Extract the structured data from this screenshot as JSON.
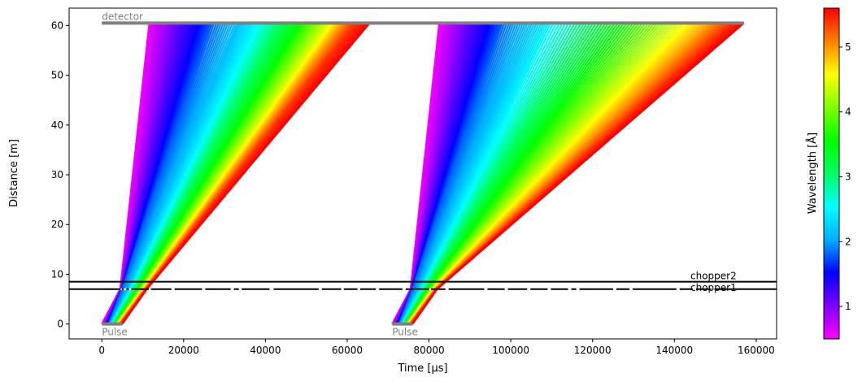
{
  "chart_data": {
    "type": "line",
    "title": "",
    "xlabel": "Time [µs]",
    "ylabel": "Distance [m]",
    "xlim": [
      -8000,
      165000
    ],
    "ylim": [
      -3,
      63.5
    ],
    "xticks": [
      0,
      20000,
      40000,
      60000,
      80000,
      100000,
      120000,
      140000,
      160000
    ],
    "yticks": [
      0,
      10,
      20,
      30,
      40,
      50,
      60
    ],
    "grid": false,
    "colorbar": {
      "label": "Wavelength [Å]",
      "range": [
        0.5,
        5.6
      ],
      "ticks": [
        1,
        2,
        3,
        4,
        5
      ],
      "colormap": "gist_rainbow_r",
      "colors": [
        "#ff00ff",
        "#7f00ff",
        "#0000ff",
        "#00b0ff",
        "#00ffff",
        "#00ff60",
        "#00ff00",
        "#80ff00",
        "#ffff00",
        "#ff8000",
        "#ff0000"
      ]
    },
    "detector": {
      "label": "detector",
      "distance": 60.5,
      "t_start": 0,
      "t_end": 157000,
      "color": "#808080"
    },
    "pulses": [
      {
        "label": "Pulse",
        "t_start": 0,
        "t_end": 5000,
        "distance": 0,
        "color": "#808080"
      },
      {
        "label": "Pulse",
        "t_start": 71000,
        "t_end": 76000,
        "distance": 0,
        "color": "#808080"
      }
    ],
    "choppers": [
      {
        "label": "chopper1",
        "distance": 7.0,
        "color": "#000000"
      },
      {
        "label": "chopper2",
        "distance": 8.5,
        "color": "#000000"
      }
    ],
    "chopper_openings": [
      [
        4600,
        4900
      ],
      [
        5300,
        6000
      ],
      [
        6600,
        7200
      ],
      [
        11500,
        12000
      ],
      [
        17000,
        17800
      ],
      [
        24500,
        25300
      ],
      [
        31500,
        32300
      ],
      [
        33500,
        34200
      ],
      [
        41000,
        42000
      ],
      [
        53000,
        53800
      ],
      [
        58500,
        59200
      ],
      [
        62500,
        63200
      ],
      [
        67000,
        67800
      ],
      [
        73500,
        74300
      ],
      [
        80000,
        80500
      ],
      [
        84000,
        84800
      ],
      [
        93500,
        94300
      ],
      [
        98500,
        99300
      ],
      [
        104000,
        104800
      ],
      [
        109000,
        109800
      ],
      [
        114000,
        114800
      ],
      [
        116000,
        116800
      ],
      [
        125000,
        125800
      ],
      [
        129000,
        129800
      ],
      [
        140500,
        141300
      ],
      [
        144500,
        145300
      ],
      [
        149000,
        149800
      ]
    ],
    "rays": [
      {
        "lambda": 0.55,
        "t_chopper": 4500,
        "t_detector": 11600
      },
      {
        "lambda": 0.7,
        "t_chopper": 4700,
        "t_detector": 13500
      },
      {
        "lambda": 0.9,
        "t_chopper": 4800,
        "t_detector": 16000
      },
      {
        "lambda": 1.2,
        "t_chopper": 4900,
        "t_detector": 19500
      },
      {
        "lambda": 1.5,
        "t_chopper": 4950,
        "t_detector": 23500
      },
      {
        "lambda": 1.8,
        "t_chopper": 5000,
        "t_detector": 27000
      },
      {
        "lambda": 2.1,
        "t_chopper": 6400,
        "t_detector": 33000
      },
      {
        "lambda": 2.5,
        "t_chopper": 7200,
        "t_detector": 38000
      },
      {
        "lambda": 3.0,
        "t_chopper": 8000,
        "t_detector": 43000
      },
      {
        "lambda": 3.5,
        "t_chopper": 8800,
        "t_detector": 48000
      },
      {
        "lambda": 4.0,
        "t_chopper": 9500,
        "t_detector": 52000
      },
      {
        "lambda": 4.5,
        "t_chopper": 10000,
        "t_detector": 56000
      },
      {
        "lambda": 5.0,
        "t_chopper": 10500,
        "t_detector": 59000
      },
      {
        "lambda": 5.4,
        "t_chopper": 10800,
        "t_detector": 62000
      },
      {
        "lambda": 5.6,
        "t_chopper": 11000,
        "t_detector": 65500
      },
      {
        "lambda": 0.55,
        "t_chopper": 75500,
        "t_detector": 82500
      },
      {
        "lambda": 0.7,
        "t_chopper": 75700,
        "t_detector": 84500
      },
      {
        "lambda": 0.9,
        "t_chopper": 75800,
        "t_detector": 87000
      },
      {
        "lambda": 1.2,
        "t_chopper": 75900,
        "t_detector": 90500
      },
      {
        "lambda": 1.5,
        "t_chopper": 75950,
        "t_detector": 94500
      },
      {
        "lambda": 1.8,
        "t_chopper": 76000,
        "t_detector": 98000
      },
      {
        "lambda": 2.1,
        "t_chopper": 77400,
        "t_detector": 104000
      },
      {
        "lambda": 2.5,
        "t_chopper": 78200,
        "t_detector": 110000
      },
      {
        "lambda": 3.0,
        "t_chopper": 79000,
        "t_detector": 118000
      },
      {
        "lambda": 3.5,
        "t_chopper": 79800,
        "t_detector": 126000
      },
      {
        "lambda": 4.0,
        "t_chopper": 80500,
        "t_detector": 134000
      },
      {
        "lambda": 4.5,
        "t_chopper": 81000,
        "t_detector": 142000
      },
      {
        "lambda": 5.0,
        "t_chopper": 81500,
        "t_detector": 149000
      },
      {
        "lambda": 5.4,
        "t_chopper": 81800,
        "t_detector": 154000
      },
      {
        "lambda": 5.6,
        "t_chopper": 82000,
        "t_detector": 157000
      }
    ]
  }
}
